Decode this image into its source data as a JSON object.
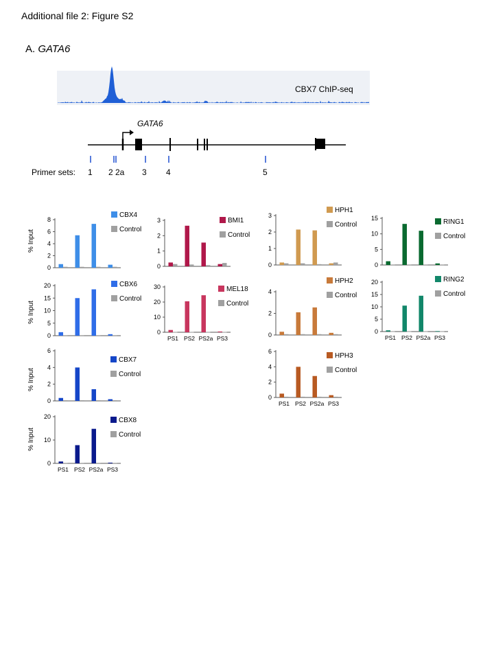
{
  "figure_title": "Additional file 2: Figure S2",
  "panel": {
    "letter": "A.",
    "gene": "GATA6"
  },
  "track": {
    "label": "CBX7 ChIP-seq",
    "color": "#1f5fd6"
  },
  "gene_model": {
    "label": "GATA6"
  },
  "primers": {
    "label": "Primer sets:",
    "names": [
      "1",
      "2",
      "2a",
      "3",
      "4",
      "5"
    ]
  },
  "y_axis_label": "% Input",
  "chart_data": [
    {
      "type": "bar",
      "name": "CBX4",
      "categories": [
        "PS1",
        "PS2",
        "PS2a",
        "PS3"
      ],
      "ylim": [
        0,
        8
      ],
      "yticks": [
        0,
        2,
        4,
        6,
        8
      ],
      "series": [
        {
          "name": "CBX4",
          "values": [
            0.6,
            5.4,
            7.3,
            0.5
          ],
          "color": "#3e8ee8"
        },
        {
          "name": "Control",
          "values": [
            0.15,
            0.15,
            0.15,
            0.15
          ],
          "color": "#a0a0a0"
        }
      ],
      "show_xticks": false
    },
    {
      "type": "bar",
      "name": "CBX6",
      "categories": [
        "PS1",
        "PS2",
        "PS2a",
        "PS3"
      ],
      "ylim": [
        0,
        20
      ],
      "yticks": [
        0,
        5,
        10,
        15,
        20
      ],
      "series": [
        {
          "name": "CBX6",
          "values": [
            1.4,
            15,
            18.5,
            0.6
          ],
          "color": "#2f6de8"
        },
        {
          "name": "Control",
          "values": [
            0.2,
            0.2,
            0.2,
            0.2
          ],
          "color": "#a0a0a0"
        }
      ],
      "show_xticks": false
    },
    {
      "type": "bar",
      "name": "CBX7",
      "categories": [
        "PS1",
        "PS2",
        "PS2a",
        "PS3"
      ],
      "ylim": [
        0,
        6
      ],
      "yticks": [
        0,
        2,
        4,
        6
      ],
      "series": [
        {
          "name": "CBX7",
          "values": [
            0.35,
            4.0,
            1.4,
            0.2
          ],
          "color": "#1546c8"
        },
        {
          "name": "Control",
          "values": [
            0.08,
            0.08,
            0.08,
            0.08
          ],
          "color": "#a0a0a0"
        }
      ],
      "show_xticks": false
    },
    {
      "type": "bar",
      "name": "CBX8",
      "categories": [
        "PS1",
        "PS2",
        "PS2a",
        "PS3"
      ],
      "ylim": [
        0,
        20
      ],
      "yticks": [
        0,
        10,
        20
      ],
      "series": [
        {
          "name": "CBX8",
          "values": [
            0.8,
            7.8,
            14.8,
            0.3
          ],
          "color": "#0a1a8c"
        },
        {
          "name": "Control",
          "values": [
            0.2,
            0.2,
            0.2,
            0.2
          ],
          "color": "#a0a0a0"
        }
      ],
      "show_xticks": true
    },
    {
      "type": "bar",
      "name": "BMI1",
      "categories": [
        "PS1",
        "PS2",
        "PS2a",
        "PS3"
      ],
      "ylim": [
        0,
        3
      ],
      "yticks": [
        0,
        1,
        2,
        3
      ],
      "series": [
        {
          "name": "BMI1",
          "values": [
            0.25,
            2.65,
            1.55,
            0.15
          ],
          "color": "#b0184a"
        },
        {
          "name": "Control",
          "values": [
            0.15,
            0.12,
            0.08,
            0.22
          ],
          "color": "#a0a0a0"
        }
      ],
      "show_xticks": false
    },
    {
      "type": "bar",
      "name": "MEL18",
      "categories": [
        "PS1",
        "PS2",
        "PS2a",
        "PS3"
      ],
      "ylim": [
        0,
        30
      ],
      "yticks": [
        0,
        10,
        20,
        30
      ],
      "series": [
        {
          "name": "MEL18",
          "values": [
            1.5,
            20.5,
            24.5,
            0.5
          ],
          "color": "#c8365e"
        },
        {
          "name": "Control",
          "values": [
            0.2,
            0.2,
            0.2,
            0.2
          ],
          "color": "#a0a0a0"
        }
      ],
      "show_xticks": true
    },
    {
      "type": "bar",
      "name": "HPH1",
      "categories": [
        "PS1",
        "PS2",
        "PS2a",
        "PS3"
      ],
      "ylim": [
        0,
        3
      ],
      "yticks": [
        0,
        1,
        2,
        3
      ],
      "series": [
        {
          "name": "HPH1",
          "values": [
            0.15,
            2.15,
            2.1,
            0.1
          ],
          "color": "#d09a50"
        },
        {
          "name": "Control",
          "values": [
            0.1,
            0.1,
            0.05,
            0.15
          ],
          "color": "#a0a0a0"
        }
      ],
      "show_xticks": false
    },
    {
      "type": "bar",
      "name": "HPH2",
      "categories": [
        "PS1",
        "PS2",
        "PS2a",
        "PS3"
      ],
      "ylim": [
        0,
        4
      ],
      "yticks": [
        0,
        2,
        4
      ],
      "series": [
        {
          "name": "HPH2",
          "values": [
            0.3,
            2.1,
            2.55,
            0.2
          ],
          "color": "#c87a3a"
        },
        {
          "name": "Control",
          "values": [
            0.08,
            0.08,
            0.08,
            0.08
          ],
          "color": "#a0a0a0"
        }
      ],
      "show_xticks": false
    },
    {
      "type": "bar",
      "name": "HPH3",
      "categories": [
        "PS1",
        "PS2",
        "PS2a",
        "PS3"
      ],
      "ylim": [
        0,
        6
      ],
      "yticks": [
        0,
        2,
        4,
        6
      ],
      "series": [
        {
          "name": "HPH3",
          "values": [
            0.5,
            4.0,
            2.8,
            0.3
          ],
          "color": "#b85a22"
        },
        {
          "name": "Control",
          "values": [
            0.1,
            0.1,
            0.1,
            0.1
          ],
          "color": "#a0a0a0"
        }
      ],
      "show_xticks": true
    },
    {
      "type": "bar",
      "name": "RING1",
      "categories": [
        "PS1",
        "PS2",
        "PS2a",
        "PS3"
      ],
      "ylim": [
        0,
        15
      ],
      "yticks": [
        0,
        5,
        10,
        15
      ],
      "series": [
        {
          "name": "RING1",
          "values": [
            1.2,
            13.2,
            11.0,
            0.5
          ],
          "color": "#0a6a30"
        },
        {
          "name": "Control",
          "values": [
            0.15,
            0.15,
            0.15,
            0.15
          ],
          "color": "#a0a0a0"
        }
      ],
      "show_xticks": false
    },
    {
      "type": "bar",
      "name": "RING2",
      "categories": [
        "PS1",
        "PS2",
        "PS2a",
        "PS3"
      ],
      "ylim": [
        0,
        20
      ],
      "yticks": [
        0,
        5,
        10,
        15,
        20
      ],
      "series": [
        {
          "name": "RING2",
          "values": [
            0.5,
            10.5,
            14.5,
            0.2
          ],
          "color": "#12876a"
        },
        {
          "name": "Control",
          "values": [
            0.1,
            0.1,
            0.1,
            0.1
          ],
          "color": "#a0a0a0"
        }
      ],
      "show_xticks": true
    }
  ]
}
